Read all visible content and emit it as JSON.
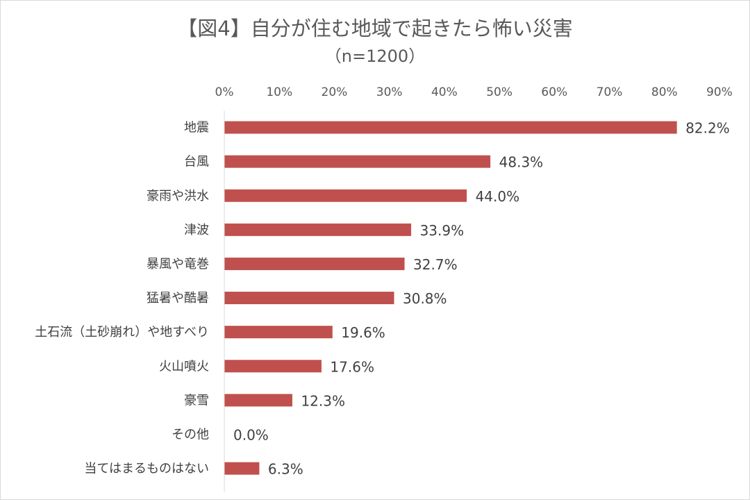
{
  "chart_data": {
    "type": "bar",
    "orientation": "horizontal",
    "title": "【図4】自分が住む地域で起きたら怖い災害",
    "subtitle": "（n=1200）",
    "categories": [
      "地震",
      "台風",
      "豪雨や洪水",
      "津波",
      "暴風や竜巻",
      "猛暑や酷暑",
      "土石流（土砂崩れ）や地すべり",
      "火山噴火",
      "豪雪",
      "その他",
      "当てはまるものはない"
    ],
    "values": [
      82.2,
      48.3,
      44.0,
      33.9,
      32.7,
      30.8,
      19.6,
      17.6,
      12.3,
      0.0,
      6.3
    ],
    "data_labels": [
      "82.2%",
      "48.3%",
      "44.0%",
      "33.9%",
      "32.7%",
      "30.8%",
      "19.6%",
      "17.6%",
      "12.3%",
      "0.0%",
      "6.3%"
    ],
    "x_ticks": [
      "0%",
      "10%",
      "20%",
      "30%",
      "40%",
      "50%",
      "60%",
      "70%",
      "80%",
      "90%"
    ],
    "xlim": [
      0,
      90
    ],
    "x_axis_position": "top",
    "grid": false,
    "legend": "none",
    "bar_color": "#c0504d"
  }
}
